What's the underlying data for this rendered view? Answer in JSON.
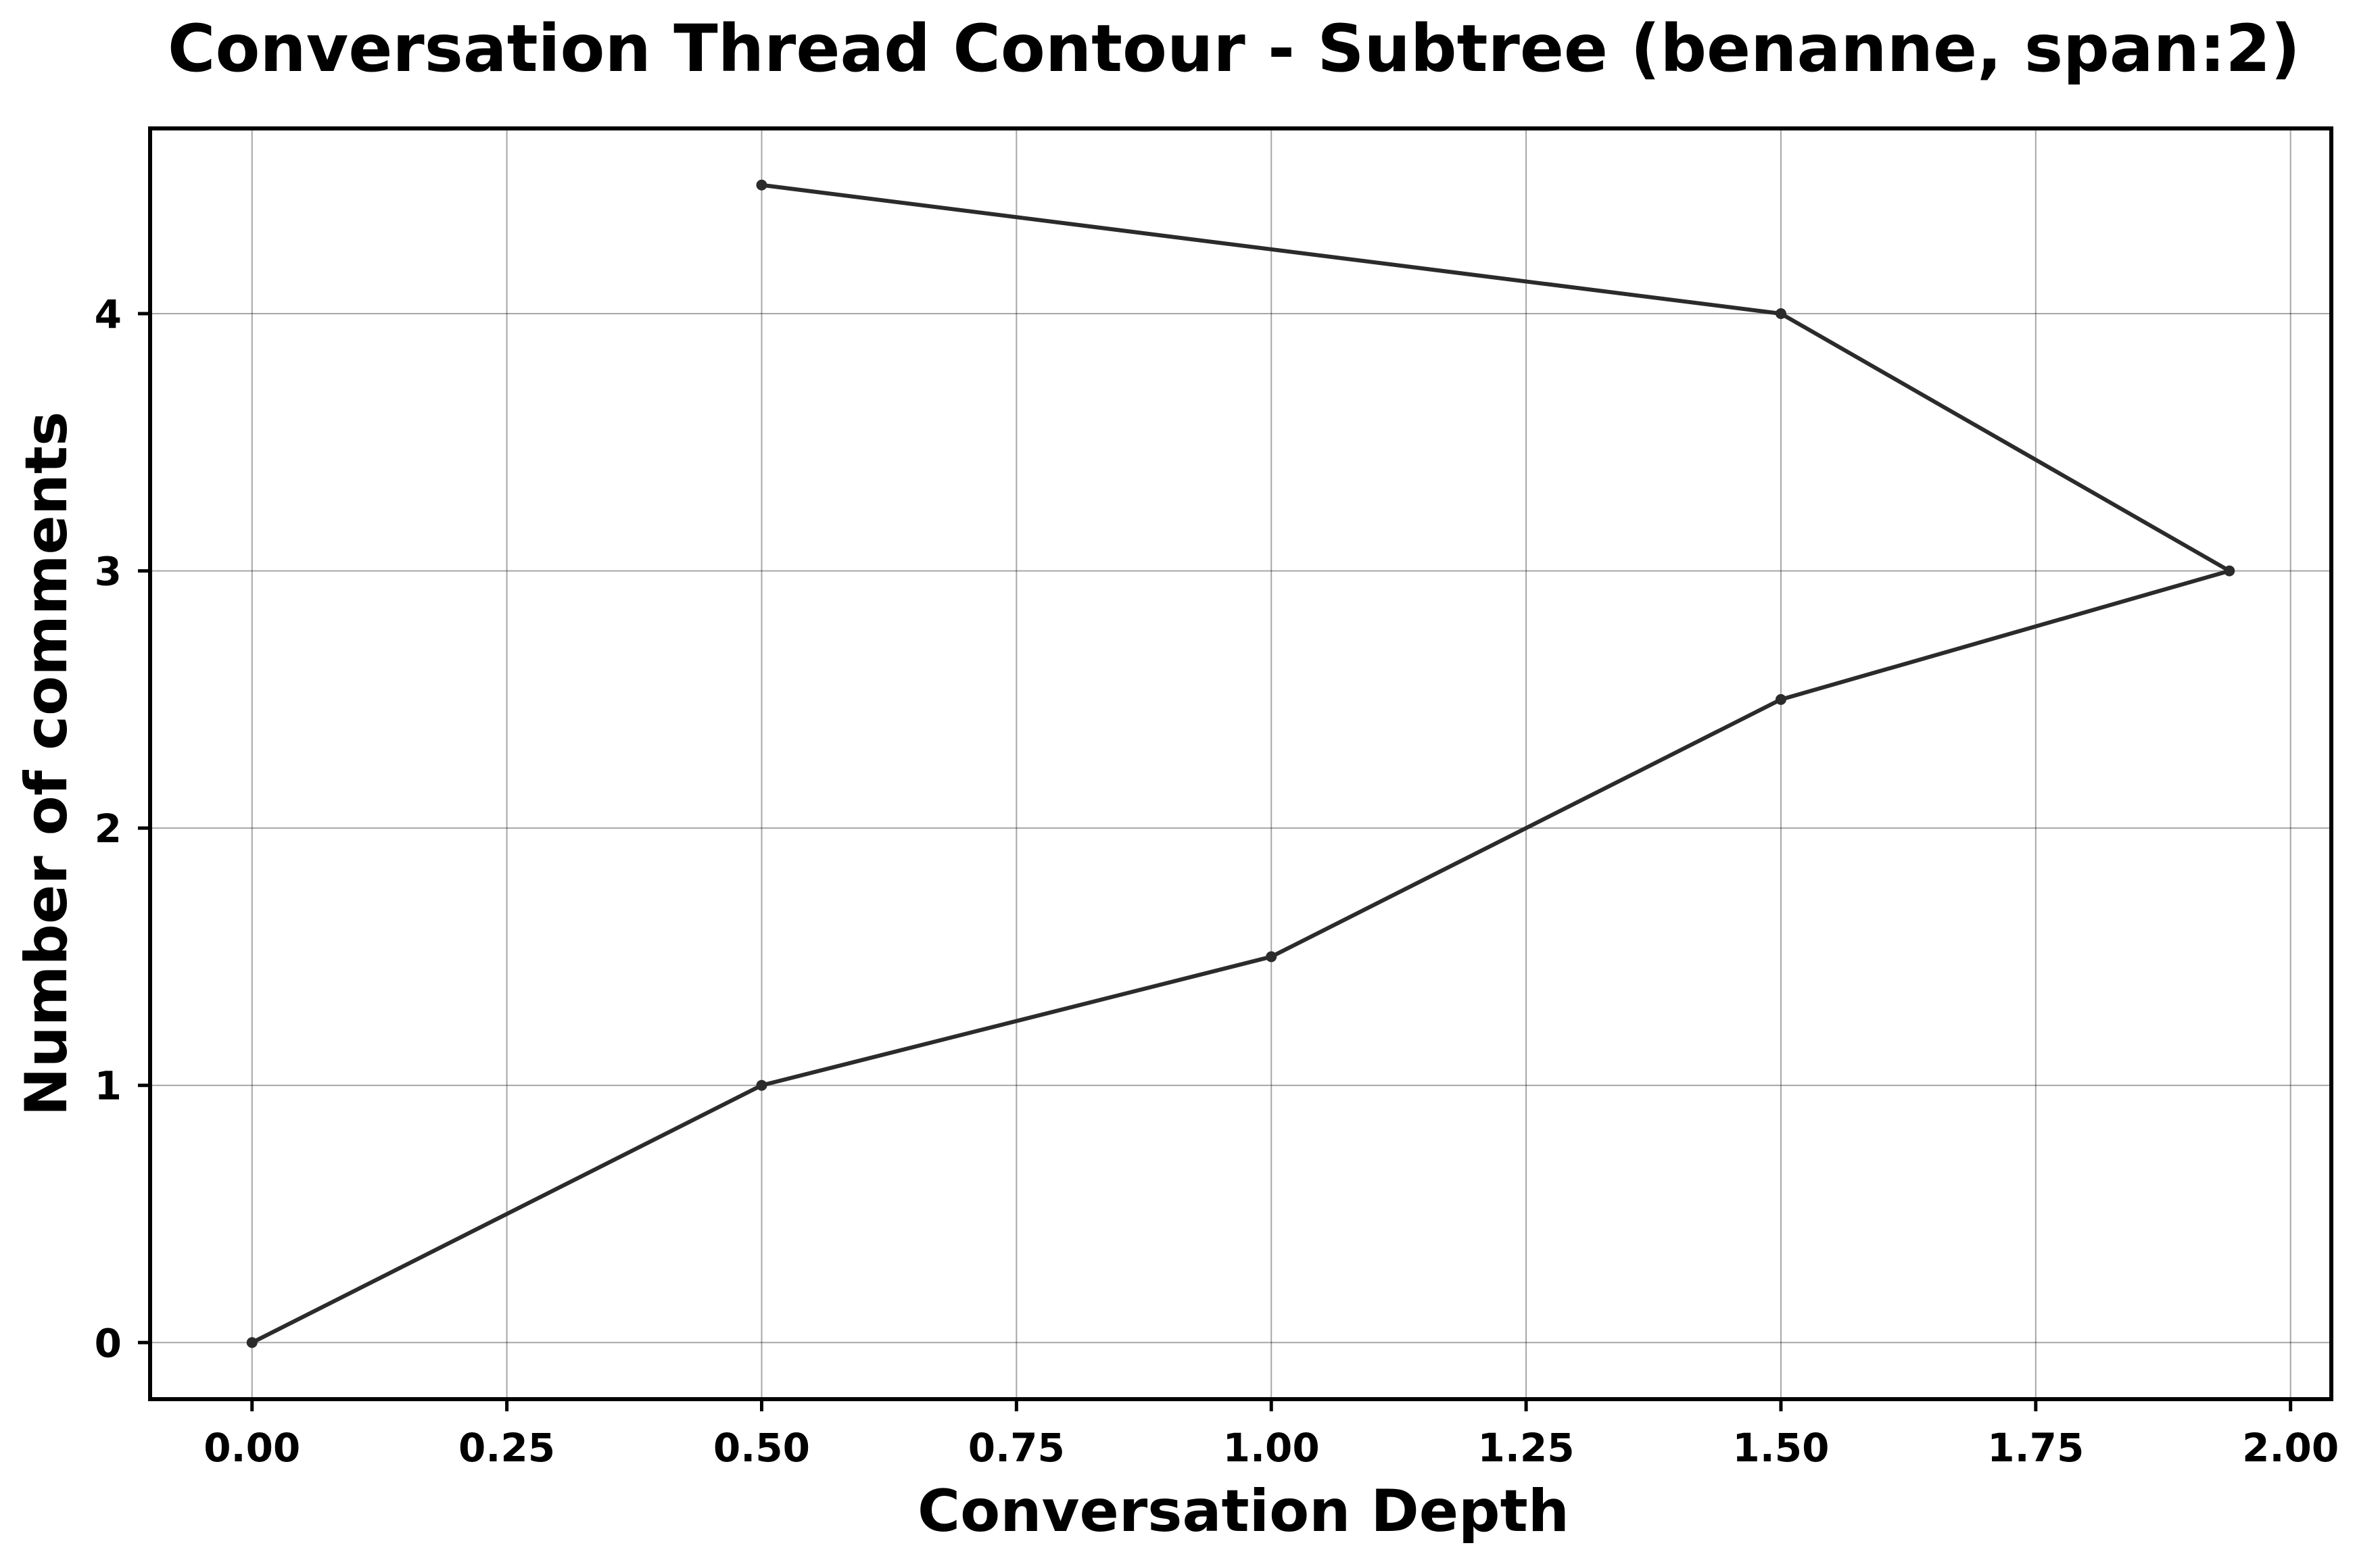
{
  "chart_data": {
    "type": "line",
    "title": "Conversation Thread Contour  - Subtree (benanne, span:2)",
    "xlabel": "Conversation Depth",
    "ylabel": "Number of comments",
    "xlim": [
      -0.1,
      2.04
    ],
    "ylim": [
      -0.22,
      4.72
    ],
    "xticks": [
      0.0,
      0.25,
      0.5,
      0.75,
      1.0,
      1.25,
      1.5,
      1.75,
      2.0
    ],
    "xtick_labels": [
      "0.00",
      "0.25",
      "0.50",
      "0.75",
      "1.00",
      "1.25",
      "1.50",
      "1.75",
      "2.00"
    ],
    "yticks": [
      0,
      1,
      2,
      3,
      4
    ],
    "ytick_labels": [
      "0",
      "1",
      "2",
      "3",
      "4"
    ],
    "grid": true,
    "series": [
      {
        "x": [
          0.0,
          0.5,
          1.0,
          1.5,
          1.94,
          1.5,
          0.5
        ],
        "y": [
          0.0,
          1.0,
          1.5,
          2.5,
          3.0,
          4.0,
          4.5
        ]
      }
    ],
    "colors": {
      "line": "#2b2b2b",
      "grid": "#000000"
    }
  }
}
